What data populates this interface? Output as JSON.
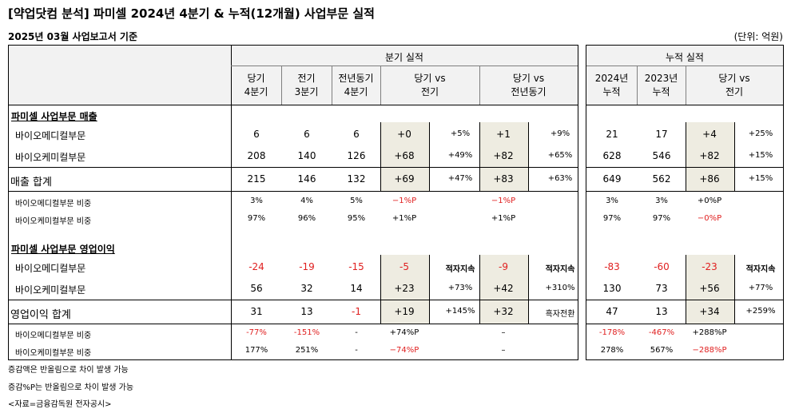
{
  "title": "[약업닷컴 분석] 파미셀 2024년 4분기 & 누적(12개월) 사업부문 실적",
  "subtitle": "2025년 03월 사업보고서 기준",
  "unit": "(단위: 억원)",
  "groups": {
    "quarter": "분기 실적",
    "cumulative": "누적 실적"
  },
  "columns": {
    "q4": [
      "당기",
      "4분기"
    ],
    "prev_q": [
      "전기",
      "3분기"
    ],
    "prev_year_q": [
      "전년동기",
      "4분기"
    ],
    "vs_prev": [
      "당기 vs",
      "전기"
    ],
    "vs_prev_year": [
      "당기 vs",
      "전년동기"
    ],
    "cum2024": [
      "2024년",
      "누적"
    ],
    "cum2023": [
      "2023년",
      "누적"
    ],
    "cum_vs": [
      "당기 vs",
      "전기"
    ]
  },
  "sections": {
    "sales": "파미셀 사업부문 매출",
    "op": "파미셀 사업부문 영업이익"
  },
  "rows": {
    "sales_bio_med": {
      "label": "바이오메디컬부문",
      "v": [
        "6",
        "6",
        "6",
        "+0",
        "+5%",
        "+1",
        "+9%",
        "21",
        "17",
        "+4",
        "+25%"
      ]
    },
    "sales_bio_chem": {
      "label": "바이오케미컬부문",
      "v": [
        "208",
        "140",
        "126",
        "+68",
        "+49%",
        "+82",
        "+65%",
        "628",
        "546",
        "+82",
        "+15%"
      ]
    },
    "sales_total": {
      "label": "매출 합계",
      "v": [
        "215",
        "146",
        "132",
        "+69",
        "+47%",
        "+83",
        "+63%",
        "649",
        "562",
        "+86",
        "+15%"
      ]
    },
    "sales_med_ratio": {
      "label": "바이오메디컬부문 비중",
      "v": [
        "3%",
        "4%",
        "5%",
        "−1%P",
        "",
        "−1%P",
        "",
        "3%",
        "3%",
        "+0%P",
        ""
      ]
    },
    "sales_chem_ratio": {
      "label": "바이오케미컬부문 비중",
      "v": [
        "97%",
        "96%",
        "95%",
        "+1%P",
        "",
        "+1%P",
        "",
        "97%",
        "97%",
        "−0%P",
        ""
      ]
    },
    "op_bio_med": {
      "label": "바이오메디컬부문",
      "v": [
        "-24",
        "-19",
        "-15",
        "-5",
        "적자지속",
        "-9",
        "적자지속",
        "-83",
        "-60",
        "-23",
        "적자지속"
      ]
    },
    "op_bio_chem": {
      "label": "바이오케미컬부문",
      "v": [
        "56",
        "32",
        "14",
        "+23",
        "+73%",
        "+42",
        "+310%",
        "130",
        "73",
        "+56",
        "+77%"
      ]
    },
    "op_total": {
      "label": "영업이익 합계",
      "v": [
        "31",
        "13",
        "-1",
        "+19",
        "+145%",
        "+32",
        "흑자전환",
        "47",
        "13",
        "+34",
        "+259%"
      ]
    },
    "op_med_ratio": {
      "label": "바이오메디컬부문 비중",
      "v": [
        "-77%",
        "-151%",
        "-",
        "+74%P",
        "",
        "–",
        "",
        "-178%",
        "-467%",
        "+288%P",
        ""
      ]
    },
    "op_chem_ratio": {
      "label": "바이오케미컬부문 비중",
      "v": [
        "177%",
        "251%",
        "-",
        "−74%P",
        "",
        "–",
        "",
        "278%",
        "567%",
        "−288%P",
        ""
      ]
    }
  },
  "footnotes": [
    "증감액은 반올림으로 차이 발생 가능",
    "증감%P는 반올림으로 차이 발생 가능",
    "<자료=금융감독원 전자공시>"
  ],
  "colors": {
    "header_bg": "#f2f2f2",
    "shade": "#eeece1",
    "negative": "#e02020"
  }
}
